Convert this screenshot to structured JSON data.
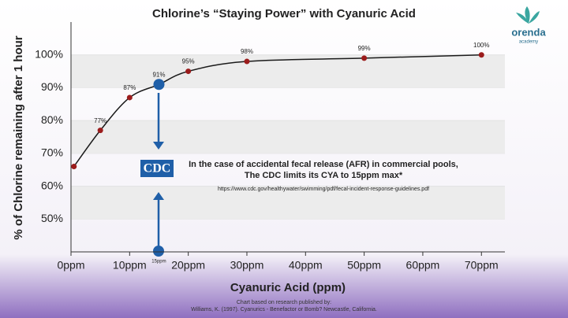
{
  "chart_data": {
    "type": "line",
    "title": "Chlorine’s “Staying Power” with Cyanuric Acid",
    "xlabel": "Cyanuric Acid (ppm)",
    "ylabel": "% of Chlorine remaining after 1 hour",
    "x": [
      0.5,
      5,
      10,
      15,
      20,
      30,
      50,
      70
    ],
    "series": [
      {
        "name": "Chlorine remaining",
        "color": "#1a1a1a",
        "marker_color": "#9b1c1c",
        "marker_colors": [
          "#9b1c1c",
          "#9b1c1c",
          "#9b1c1c",
          "#1f5fa8",
          "#9b1c1c",
          "#9b1c1c",
          "#9b1c1c",
          "#9b1c1c"
        ],
        "values": [
          66,
          77,
          87,
          91,
          95,
          98,
          99,
          100
        ],
        "value_labels": [
          null,
          "77%",
          "87%",
          "91%",
          "95%",
          "98%",
          "99%",
          "100%"
        ]
      }
    ],
    "xlim": [
      0,
      74
    ],
    "ylim": [
      40,
      110
    ],
    "xticks": [
      {
        "value": 0,
        "label": "0ppm"
      },
      {
        "value": 10,
        "label": "10ppm"
      },
      {
        "value": 20,
        "label": "20ppm"
      },
      {
        "value": 30,
        "label": "30ppm"
      },
      {
        "value": 40,
        "label": "40ppm"
      },
      {
        "value": 50,
        "label": "50ppm"
      },
      {
        "value": 60,
        "label": "60ppm"
      },
      {
        "value": 70,
        "label": "70ppm"
      }
    ],
    "yticks": [
      {
        "value": 50,
        "label": "50%"
      },
      {
        "value": 60,
        "label": "60%"
      },
      {
        "value": 70,
        "label": "70%"
      },
      {
        "value": 80,
        "label": "80%"
      },
      {
        "value": 90,
        "label": "90%"
      },
      {
        "value": 100,
        "label": "100%"
      }
    ],
    "grid": true,
    "highlight_label": {
      "value": 15,
      "label": "15ppm"
    },
    "logo_text": "CDC",
    "annotation": [
      "In the case of accidental fecal release (AFR) in commercial pools,",
      "The CDC limits its CYA to 15ppm max*"
    ],
    "url": "https://www.cdc.gov/healthywater/swimming/pdf/fecal-incident-response-guidelines.pdf",
    "source": [
      "Chart based on research published by:",
      "Williams, K. (1997). Cyanurics - Benefactor or Bomb? Newcastle, California."
    ],
    "brand": [
      "orenda",
      "academy"
    ]
  }
}
